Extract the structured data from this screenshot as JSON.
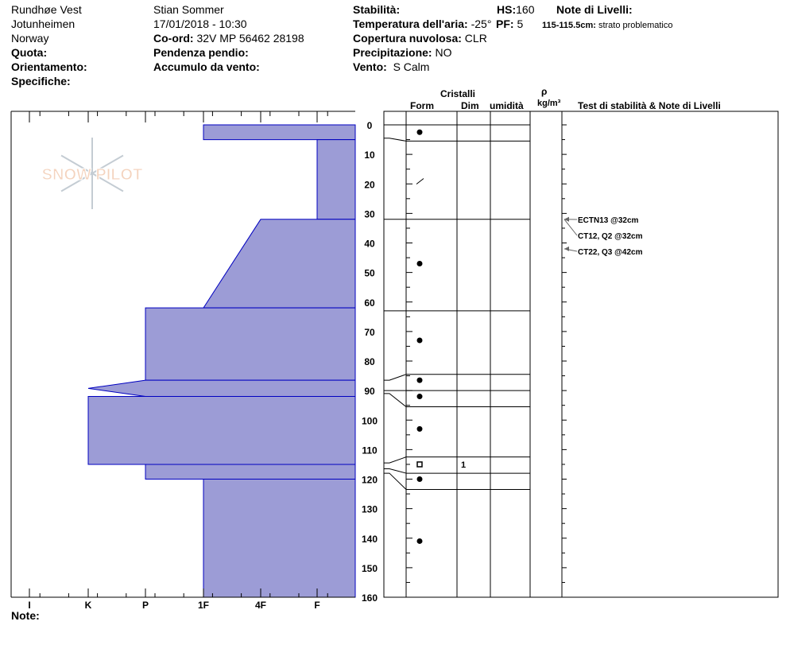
{
  "header": {
    "site": "Rundhøe Vest",
    "range": "Jotunheimen",
    "country": "Norway",
    "quota_label": "Quota:",
    "orient_label": "Orientamento:",
    "spec_label": "Specifiche:",
    "observer": "Stian Sommer",
    "datetime": "17/01/2018 - 10:30",
    "coord_label": "Co-ord:",
    "coord": "32V MP 56462 28198",
    "slope_label": "Pendenza pendio:",
    "wind_load_label": "Accumulo da vento:",
    "stab_label": "Stabilità:",
    "temp_label": "Temperatura dell'aria:",
    "temp": "-25°",
    "cloud_label": "Copertura nuvolosa:",
    "cloud": "CLR",
    "precip_label": "Precipitazione:",
    "precip": "NO",
    "wind_label": "Vento:",
    "wind": "S Calm",
    "hs_label": "HS:",
    "hs": "160",
    "pf_label": "PF:",
    "pf": "5",
    "layer_notes_label": "Note di Livelli:",
    "layer_note_depth": "115-115.5cm:",
    "layer_note": "strato problematico",
    "note_label": "Note:"
  },
  "columns": {
    "crystals": "Cristalli",
    "form": "Form",
    "size": "Dim",
    "moisture": "umidità",
    "rho": "ρ",
    "density_unit": "kg/m³",
    "tests": "Test di stabilità & Note di Livelli"
  },
  "logo": "SNOW PILOT",
  "chart_data": {
    "type": "snow-profile",
    "depth_range": [
      0,
      160
    ],
    "depth_ticks": [
      0,
      10,
      20,
      30,
      40,
      50,
      60,
      70,
      80,
      90,
      100,
      110,
      120,
      130,
      140,
      150,
      160
    ],
    "hardness_ticks": [
      "I",
      "K",
      "P",
      "1F",
      "4F",
      "F"
    ],
    "hardness_profile": [
      {
        "top": 0,
        "bottom": 5,
        "hardness": "1F"
      },
      {
        "top": 5,
        "bottom": 32,
        "hardness": "F"
      },
      {
        "top": 32,
        "bottom": 62,
        "hardness_top": "4F",
        "hardness_bottom": "1F"
      },
      {
        "top": 62,
        "bottom": 86.5,
        "hardness": "P"
      },
      {
        "top": 86.5,
        "bottom": 92,
        "hardness": "K",
        "spike": true
      },
      {
        "top": 92,
        "bottom": 115,
        "hardness": "K"
      },
      {
        "top": 115,
        "bottom": 120,
        "hardness": "P"
      },
      {
        "top": 120,
        "bottom": 160,
        "hardness": "1F"
      }
    ],
    "layer_boundaries": [
      0,
      5.5,
      32,
      63,
      84.5,
      90,
      95.5,
      112.5,
      118,
      123.5
    ],
    "grains": [
      {
        "depth": 2.5,
        "form": "dot"
      },
      {
        "depth": 19,
        "form": "slash"
      },
      {
        "depth": 47,
        "form": "dot"
      },
      {
        "depth": 73,
        "form": "dot"
      },
      {
        "depth": 86.5,
        "form": "dot"
      },
      {
        "depth": 92,
        "form": "dot"
      },
      {
        "depth": 103,
        "form": "dot"
      },
      {
        "depth": 115,
        "form": "square",
        "size": "1"
      },
      {
        "depth": 120,
        "form": "dot"
      },
      {
        "depth": 141,
        "form": "dot"
      }
    ],
    "tests": [
      {
        "label": "ECTN13 @32cm",
        "depth": 32
      },
      {
        "label": "CT12, Q2 @32cm",
        "depth": 32
      },
      {
        "label": "CT22, Q3 @42cm",
        "depth": 42
      }
    ],
    "fill": "#9c9cd6",
    "edge": "#0000c0"
  }
}
